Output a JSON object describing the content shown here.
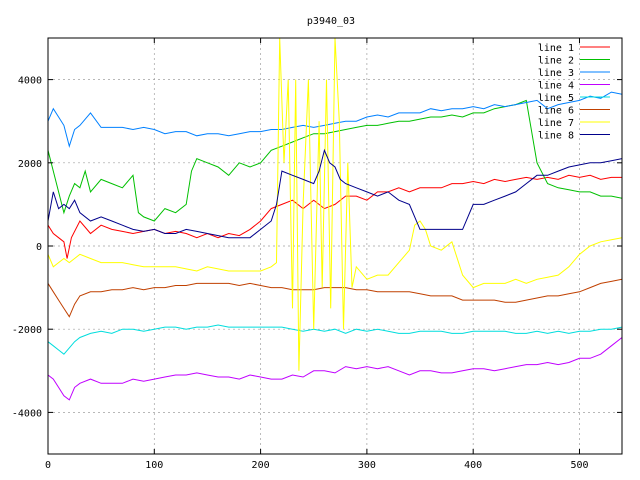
{
  "chart_data": {
    "type": "line",
    "title": "p3940_03",
    "xlabel": "",
    "ylabel": "",
    "xlim": [
      0,
      540
    ],
    "ylim": [
      -5000,
      5000
    ],
    "xticks": [
      0,
      100,
      200,
      300,
      400,
      500
    ],
    "yticks": [
      -4000,
      -2000,
      0,
      2000,
      4000
    ],
    "grid": true,
    "legend_position": "top-right",
    "series": [
      {
        "name": "line 1",
        "color": "#ff0000",
        "x": [
          0,
          5,
          10,
          15,
          18,
          22,
          30,
          40,
          50,
          60,
          70,
          80,
          90,
          100,
          110,
          120,
          130,
          140,
          150,
          160,
          170,
          180,
          190,
          200,
          210,
          220,
          230,
          240,
          250,
          260,
          270,
          280,
          290,
          300,
          310,
          320,
          330,
          340,
          350,
          360,
          370,
          380,
          390,
          400,
          410,
          420,
          430,
          440,
          450,
          460,
          470,
          480,
          490,
          500,
          510,
          520,
          530,
          540
        ],
        "y": [
          500,
          300,
          200,
          100,
          -300,
          200,
          600,
          300,
          500,
          400,
          350,
          300,
          350,
          400,
          300,
          350,
          300,
          200,
          300,
          200,
          300,
          250,
          400,
          600,
          900,
          1000,
          1100,
          900,
          1100,
          900,
          1000,
          1200,
          1200,
          1100,
          1300,
          1300,
          1400,
          1300,
          1400,
          1400,
          1400,
          1500,
          1500,
          1550,
          1500,
          1600,
          1550,
          1600,
          1650,
          1600,
          1650,
          1600,
          1700,
          1650,
          1700,
          1600,
          1650,
          1650
        ]
      },
      {
        "name": "line 2",
        "color": "#00c000",
        "x": [
          0,
          5,
          10,
          15,
          20,
          25,
          30,
          35,
          40,
          50,
          60,
          70,
          80,
          85,
          90,
          100,
          110,
          120,
          130,
          135,
          140,
          150,
          160,
          170,
          180,
          190,
          200,
          210,
          220,
          230,
          240,
          250,
          260,
          270,
          280,
          290,
          300,
          310,
          320,
          330,
          340,
          350,
          360,
          370,
          380,
          390,
          400,
          410,
          420,
          430,
          440,
          450,
          460,
          470,
          480,
          490,
          500,
          510,
          520,
          530,
          540
        ],
        "y": [
          2300,
          1800,
          1300,
          800,
          1200,
          1500,
          1400,
          1800,
          1300,
          1600,
          1500,
          1400,
          1700,
          800,
          700,
          600,
          900,
          800,
          1000,
          1800,
          2100,
          2000,
          1900,
          1700,
          2000,
          1900,
          2000,
          2300,
          2400,
          2500,
          2600,
          2700,
          2700,
          2750,
          2800,
          2850,
          2900,
          2900,
          2950,
          3000,
          3000,
          3050,
          3100,
          3100,
          3150,
          3100,
          3200,
          3200,
          3300,
          3350,
          3400,
          3500,
          2000,
          1500,
          1400,
          1350,
          1300,
          1300,
          1200,
          1200,
          1150
        ]
      },
      {
        "name": "line 3",
        "color": "#0080ff",
        "x": [
          0,
          5,
          10,
          15,
          20,
          25,
          30,
          40,
          50,
          60,
          70,
          80,
          90,
          100,
          110,
          120,
          130,
          140,
          150,
          160,
          170,
          180,
          190,
          200,
          210,
          220,
          230,
          240,
          250,
          260,
          270,
          280,
          290,
          300,
          310,
          320,
          330,
          340,
          350,
          360,
          370,
          380,
          390,
          400,
          410,
          420,
          430,
          440,
          450,
          460,
          470,
          480,
          490,
          500,
          510,
          520,
          530,
          540
        ],
        "y": [
          3000,
          3300,
          3100,
          2900,
          2400,
          2800,
          2900,
          3200,
          2850,
          2850,
          2850,
          2800,
          2850,
          2800,
          2700,
          2750,
          2750,
          2650,
          2700,
          2700,
          2650,
          2700,
          2750,
          2750,
          2800,
          2800,
          2850,
          2900,
          2850,
          2900,
          2950,
          3000,
          3000,
          3100,
          3150,
          3100,
          3200,
          3200,
          3200,
          3300,
          3250,
          3300,
          3300,
          3350,
          3300,
          3400,
          3350,
          3400,
          3450,
          3500,
          3300,
          3400,
          3450,
          3500,
          3600,
          3550,
          3700,
          3650
        ]
      },
      {
        "name": "line 4",
        "color": "#c000ff",
        "x": [
          0,
          5,
          10,
          15,
          20,
          25,
          30,
          40,
          50,
          60,
          70,
          80,
          90,
          100,
          110,
          120,
          130,
          140,
          150,
          160,
          170,
          180,
          190,
          200,
          210,
          220,
          230,
          240,
          250,
          260,
          270,
          280,
          290,
          300,
          310,
          320,
          330,
          340,
          350,
          360,
          370,
          380,
          390,
          400,
          410,
          420,
          430,
          440,
          450,
          460,
          470,
          480,
          490,
          500,
          510,
          520,
          530,
          540
        ],
        "y": [
          -3100,
          -3200,
          -3400,
          -3600,
          -3700,
          -3400,
          -3300,
          -3200,
          -3300,
          -3300,
          -3300,
          -3200,
          -3250,
          -3200,
          -3150,
          -3100,
          -3100,
          -3050,
          -3100,
          -3150,
          -3150,
          -3200,
          -3100,
          -3150,
          -3200,
          -3200,
          -3100,
          -3150,
          -3000,
          -3000,
          -3050,
          -2900,
          -2950,
          -2900,
          -2950,
          -2900,
          -3000,
          -3100,
          -3000,
          -3000,
          -3050,
          -3050,
          -3000,
          -2950,
          -2950,
          -3000,
          -2950,
          -2900,
          -2850,
          -2850,
          -2800,
          -2850,
          -2800,
          -2700,
          -2700,
          -2600,
          -2400,
          -2200
        ]
      },
      {
        "name": "line 5",
        "color": "#00dddd",
        "x": [
          0,
          5,
          10,
          15,
          20,
          25,
          30,
          40,
          50,
          60,
          70,
          80,
          90,
          100,
          110,
          120,
          130,
          140,
          150,
          160,
          170,
          180,
          190,
          200,
          210,
          220,
          230,
          240,
          250,
          260,
          270,
          280,
          290,
          300,
          310,
          320,
          330,
          340,
          350,
          360,
          370,
          380,
          390,
          400,
          410,
          420,
          430,
          440,
          450,
          460,
          470,
          480,
          490,
          500,
          510,
          520,
          530,
          540
        ],
        "y": [
          -2300,
          -2400,
          -2500,
          -2600,
          -2450,
          -2300,
          -2200,
          -2100,
          -2050,
          -2100,
          -2000,
          -2000,
          -2050,
          -2000,
          -1950,
          -1950,
          -2000,
          -1950,
          -1950,
          -1900,
          -1950,
          -1950,
          -1950,
          -1950,
          -1950,
          -1950,
          -2000,
          -2050,
          -2000,
          -2050,
          -2000,
          -2100,
          -2000,
          -2050,
          -2000,
          -2050,
          -2100,
          -2100,
          -2050,
          -2050,
          -2050,
          -2100,
          -2100,
          -2050,
          -2050,
          -2050,
          -2050,
          -2100,
          -2100,
          -2050,
          -2100,
          -2050,
          -2100,
          -2050,
          -2050,
          -2000,
          -2000,
          -1950
        ]
      },
      {
        "name": "line 6",
        "color": "#c04000",
        "x": [
          0,
          5,
          10,
          15,
          20,
          25,
          30,
          40,
          50,
          60,
          70,
          80,
          90,
          100,
          110,
          120,
          130,
          140,
          150,
          160,
          170,
          180,
          190,
          200,
          210,
          220,
          230,
          240,
          250,
          260,
          270,
          280,
          290,
          300,
          310,
          320,
          330,
          340,
          350,
          360,
          370,
          380,
          390,
          400,
          410,
          420,
          430,
          440,
          450,
          460,
          470,
          480,
          490,
          500,
          510,
          520,
          530,
          540
        ],
        "y": [
          -900,
          -1100,
          -1300,
          -1500,
          -1700,
          -1400,
          -1200,
          -1100,
          -1100,
          -1050,
          -1050,
          -1000,
          -1050,
          -1000,
          -1000,
          -950,
          -950,
          -900,
          -900,
          -900,
          -900,
          -950,
          -900,
          -950,
          -1000,
          -1000,
          -1050,
          -1050,
          -1050,
          -1000,
          -1000,
          -1000,
          -1050,
          -1050,
          -1100,
          -1100,
          -1100,
          -1100,
          -1150,
          -1200,
          -1200,
          -1200,
          -1300,
          -1300,
          -1300,
          -1300,
          -1350,
          -1350,
          -1300,
          -1250,
          -1200,
          -1200,
          -1150,
          -1100,
          -1000,
          -900,
          -850,
          -800
        ]
      },
      {
        "name": "line 7",
        "color": "#ffff00",
        "x": [
          0,
          5,
          10,
          15,
          20,
          25,
          30,
          40,
          50,
          60,
          70,
          80,
          90,
          100,
          110,
          120,
          130,
          140,
          150,
          160,
          170,
          180,
          190,
          200,
          210,
          215,
          218,
          222,
          226,
          230,
          233,
          236,
          240,
          245,
          250,
          255,
          258,
          262,
          266,
          270,
          274,
          278,
          282,
          286,
          290,
          300,
          310,
          320,
          330,
          340,
          345,
          350,
          355,
          360,
          370,
          380,
          390,
          400,
          410,
          420,
          430,
          440,
          450,
          460,
          470,
          480,
          490,
          500,
          510,
          520,
          530,
          540
        ],
        "y": [
          -200,
          -500,
          -400,
          -300,
          -400,
          -300,
          -200,
          -300,
          -400,
          -400,
          -400,
          -450,
          -500,
          -500,
          -500,
          -500,
          -550,
          -600,
          -500,
          -550,
          -600,
          -600,
          -600,
          -600,
          -500,
          -400,
          5000,
          2000,
          4000,
          -1500,
          4000,
          -3000,
          1000,
          4000,
          -2000,
          3000,
          -1000,
          4000,
          -1500,
          5000,
          3000,
          -2000,
          2000,
          -1000,
          -500,
          -800,
          -700,
          -700,
          -400,
          -100,
          500,
          600,
          400,
          0,
          -100,
          100,
          -700,
          -1000,
          -900,
          -900,
          -900,
          -800,
          -900,
          -800,
          -750,
          -700,
          -500,
          -200,
          0,
          100,
          150,
          200
        ]
      },
      {
        "name": "line 8",
        "color": "#00008b",
        "x": [
          0,
          5,
          10,
          15,
          20,
          25,
          30,
          40,
          50,
          60,
          70,
          80,
          90,
          100,
          110,
          120,
          130,
          140,
          150,
          160,
          170,
          180,
          190,
          200,
          210,
          215,
          220,
          230,
          240,
          250,
          255,
          260,
          265,
          270,
          275,
          280,
          290,
          300,
          310,
          320,
          330,
          340,
          350,
          360,
          370,
          380,
          390,
          400,
          410,
          420,
          430,
          440,
          450,
          460,
          470,
          480,
          490,
          500,
          510,
          520,
          530,
          540
        ],
        "y": [
          600,
          1300,
          900,
          1000,
          900,
          1100,
          800,
          600,
          700,
          600,
          500,
          400,
          350,
          400,
          300,
          300,
          400,
          350,
          300,
          250,
          200,
          200,
          200,
          400,
          600,
          1000,
          1800,
          1700,
          1600,
          1500,
          1800,
          2300,
          2000,
          1900,
          1600,
          1500,
          1400,
          1300,
          1200,
          1300,
          1100,
          1000,
          400,
          400,
          400,
          400,
          400,
          1000,
          1000,
          1100,
          1200,
          1300,
          1500,
          1700,
          1700,
          1800,
          1900,
          1950,
          2000,
          2000,
          2050,
          2100
        ]
      }
    ]
  }
}
